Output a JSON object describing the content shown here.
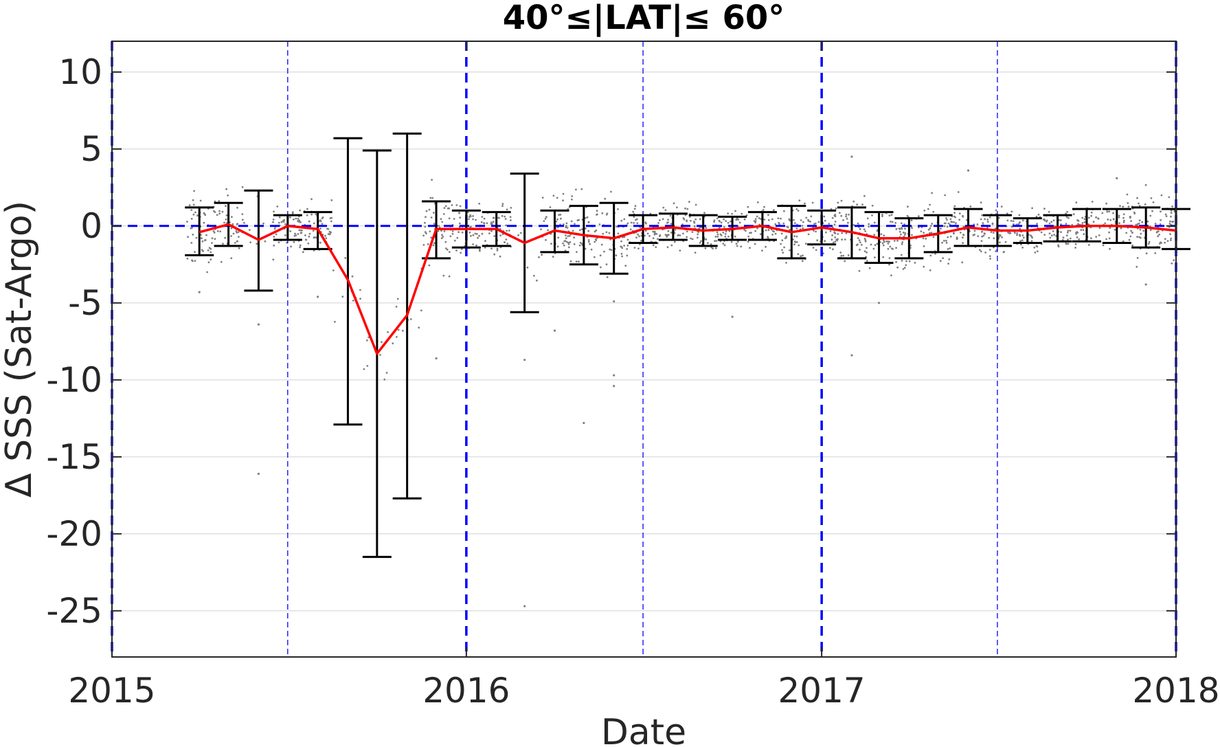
{
  "chart_data": {
    "type": "line",
    "title": "40°≤|LAT|≤ 60°",
    "xlabel": "Date",
    "ylabel": "Δ SSS (Sat-Argo)",
    "xlim": [
      "2015-01-01",
      "2018-01-01"
    ],
    "ylim": [
      -28,
      12
    ],
    "x_ticks": [
      "2015",
      "2016",
      "2017",
      "2018"
    ],
    "y_ticks": [
      10,
      5,
      0,
      -5,
      -10,
      -15,
      -20,
      -25
    ],
    "grid": "horizontal",
    "colors": {
      "mean_line": "#ff0000",
      "error_bars": "#000000",
      "scatter": "#808080",
      "reference_lines": "#0000ff",
      "grid": "#e0e0e0"
    },
    "reference_lines": {
      "zero_line": 0,
      "year_dates": [
        "2015-01-01",
        "2016-01-01",
        "2017-01-01",
        "2018-01-01"
      ],
      "half_year_dates": [
        "2015-07-01",
        "2016-07-01",
        "2017-07-01"
      ]
    },
    "series": [
      {
        "type": "line_with_error_bars",
        "points": [
          {
            "date": "2015-04-01",
            "mean": -0.4,
            "upper": 1.2,
            "lower": -1.9
          },
          {
            "date": "2015-05-01",
            "mean": 0.1,
            "upper": 1.5,
            "lower": -1.3
          },
          {
            "date": "2015-06-01",
            "mean": -0.9,
            "upper": 2.3,
            "lower": -4.2
          },
          {
            "date": "2015-07-01",
            "mean": 0.0,
            "upper": 0.7,
            "lower": -0.9
          },
          {
            "date": "2015-08-01",
            "mean": -0.2,
            "upper": 0.9,
            "lower": -1.5
          },
          {
            "date": "2015-09-01",
            "mean": -3.5,
            "upper": 5.7,
            "lower": -12.9
          },
          {
            "date": "2015-10-01",
            "mean": -8.3,
            "upper": 4.9,
            "lower": -21.5
          },
          {
            "date": "2015-11-01",
            "mean": -5.8,
            "upper": 6.0,
            "lower": -17.7
          },
          {
            "date": "2015-12-01",
            "mean": -0.2,
            "upper": 1.6,
            "lower": -2.1
          },
          {
            "date": "2016-01-01",
            "mean": -0.2,
            "upper": 1.0,
            "lower": -1.4
          },
          {
            "date": "2016-02-01",
            "mean": -0.2,
            "upper": 0.9,
            "lower": -1.3
          },
          {
            "date": "2016-03-01",
            "mean": -1.1,
            "upper": 3.4,
            "lower": -5.6
          },
          {
            "date": "2016-04-01",
            "mean": -0.3,
            "upper": 1.0,
            "lower": -1.7
          },
          {
            "date": "2016-05-01",
            "mean": -0.6,
            "upper": 1.3,
            "lower": -2.5
          },
          {
            "date": "2016-06-01",
            "mean": -0.8,
            "upper": 1.5,
            "lower": -3.1
          },
          {
            "date": "2016-07-01",
            "mean": -0.2,
            "upper": 0.7,
            "lower": -1.1
          },
          {
            "date": "2016-08-01",
            "mean": -0.1,
            "upper": 0.8,
            "lower": -0.9
          },
          {
            "date": "2016-09-01",
            "mean": -0.3,
            "upper": 0.7,
            "lower": -1.3
          },
          {
            "date": "2016-10-01",
            "mean": -0.2,
            "upper": 0.6,
            "lower": -0.9
          },
          {
            "date": "2016-11-01",
            "mean": 0.0,
            "upper": 0.9,
            "lower": -0.9
          },
          {
            "date": "2016-12-01",
            "mean": -0.4,
            "upper": 1.3,
            "lower": -2.1
          },
          {
            "date": "2017-01-01",
            "mean": -0.1,
            "upper": 1.0,
            "lower": -1.2
          },
          {
            "date": "2017-02-01",
            "mean": -0.4,
            "upper": 1.2,
            "lower": -2.1
          },
          {
            "date": "2017-03-01",
            "mean": -0.8,
            "upper": 0.9,
            "lower": -2.4
          },
          {
            "date": "2017-04-01",
            "mean": -0.8,
            "upper": 0.5,
            "lower": -2.1
          },
          {
            "date": "2017-05-01",
            "mean": -0.5,
            "upper": 0.7,
            "lower": -1.7
          },
          {
            "date": "2017-06-01",
            "mean": -0.1,
            "upper": 1.1,
            "lower": -1.3
          },
          {
            "date": "2017-07-01",
            "mean": -0.3,
            "upper": 0.7,
            "lower": -1.3
          },
          {
            "date": "2017-08-01",
            "mean": -0.3,
            "upper": 0.5,
            "lower": -1.1
          },
          {
            "date": "2017-09-01",
            "mean": -0.1,
            "upper": 0.7,
            "lower": -1.0
          },
          {
            "date": "2017-10-01",
            "mean": 0.0,
            "upper": 1.1,
            "lower": -1.0
          },
          {
            "date": "2017-11-01",
            "mean": 0.0,
            "upper": 1.1,
            "lower": -1.1
          },
          {
            "date": "2017-12-01",
            "mean": -0.1,
            "upper": 1.2,
            "lower": -1.4
          },
          {
            "date": "2018-01-01",
            "mean": -0.3,
            "upper": 1.1,
            "lower": -1.5
          }
        ]
      },
      {
        "type": "scatter",
        "description_points": [
          {
            "date": "2015-06-01",
            "value": -16.1
          },
          {
            "date": "2015-06-01",
            "value": -6.4
          },
          {
            "date": "2015-04-01",
            "value": -4.3
          },
          {
            "date": "2015-08-01",
            "value": -4.6
          },
          {
            "date": "2015-12-01",
            "value": -8.6
          },
          {
            "date": "2016-03-01",
            "value": -24.7
          },
          {
            "date": "2016-03-01",
            "value": -8.7
          },
          {
            "date": "2016-04-01",
            "value": -6.8
          },
          {
            "date": "2016-05-01",
            "value": -12.8
          },
          {
            "date": "2016-06-01",
            "value": -9.7
          },
          {
            "date": "2016-06-01",
            "value": -10.4
          },
          {
            "date": "2016-06-01",
            "value": -4.9
          },
          {
            "date": "2016-10-01",
            "value": -5.9
          },
          {
            "date": "2017-01-01",
            "value": -9.0
          },
          {
            "date": "2017-02-01",
            "value": 4.5
          },
          {
            "date": "2017-02-01",
            "value": -8.4
          },
          {
            "date": "2017-03-01",
            "value": -5.0
          },
          {
            "date": "2017-06-01",
            "value": 3.6
          },
          {
            "date": "2017-11-01",
            "value": 3.1
          },
          {
            "date": "2017-12-01",
            "value": -3.8
          }
        ]
      }
    ]
  }
}
